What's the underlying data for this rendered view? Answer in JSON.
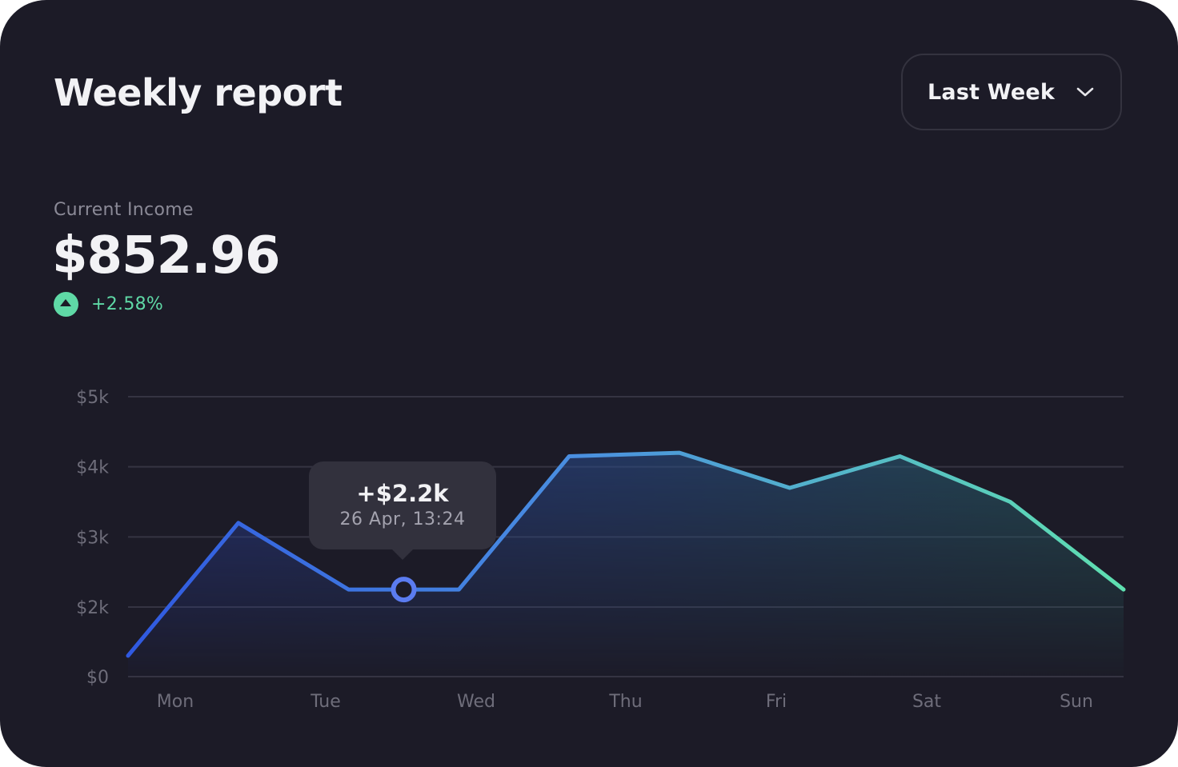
{
  "header": {
    "title": "Weekly report",
    "period_select": "Last Week",
    "chevron_icon": "chevron-down-icon"
  },
  "summary": {
    "label": "Current Income",
    "value": "$852.96",
    "change": "+2.58%",
    "change_icon": "arrow-up-icon",
    "change_color": "#5fd9a6"
  },
  "tooltip": {
    "value": "+$2.2k",
    "date": "26 Apr, 13:24"
  },
  "colors": {
    "background": "#1c1b27",
    "line_start": "#3059e0",
    "line_mid": "#4a8fe0",
    "line_end": "#5fe0b0",
    "grid": "#353442",
    "axis_text": "#6e6d7a",
    "marker": "#5b7cf0"
  },
  "chart_data": {
    "type": "area",
    "title": "",
    "xlabel": "",
    "ylabel": "",
    "y_ticks": [
      "$0",
      "$2k",
      "$3k",
      "$4k",
      "$5k"
    ],
    "x_tick_labels": [
      "Mon",
      "Tue",
      "Wed",
      "Thu",
      "Fri",
      "Sat",
      "Sun"
    ],
    "ylim": [
      0,
      5000
    ],
    "grid": true,
    "series": [
      {
        "x": [
          0,
          0.72,
          1.44,
          2.16,
          2.88,
          3.6,
          4.32,
          5.04,
          5.76,
          6.5
        ],
        "values": [
          600,
          3200,
          2250,
          2250,
          4150,
          4200,
          3700,
          4150,
          3500,
          2250
        ]
      }
    ],
    "highlight": {
      "x": 1.8,
      "value": 2250
    }
  }
}
